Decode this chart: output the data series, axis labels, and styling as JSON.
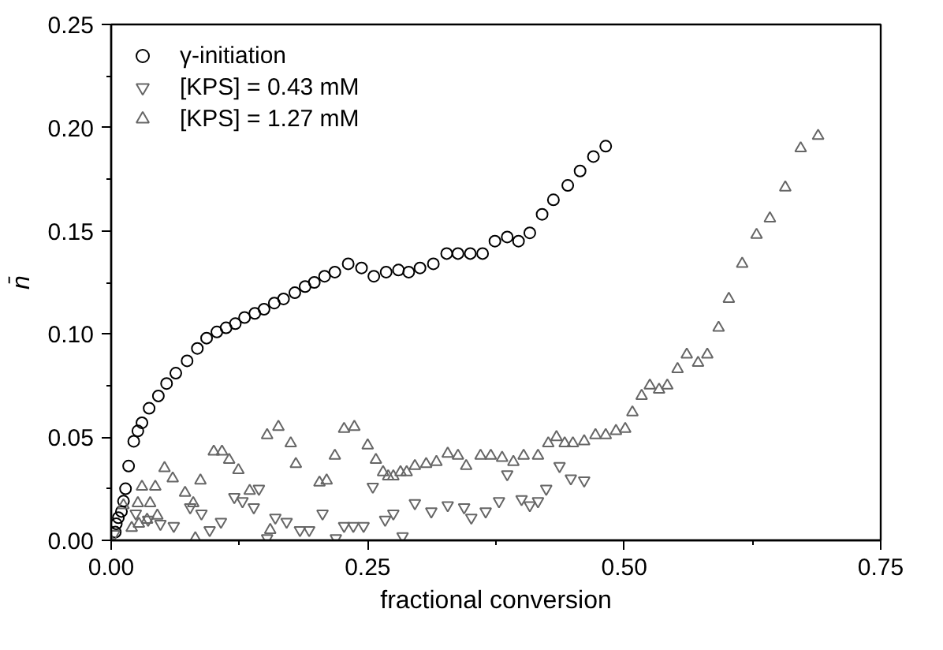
{
  "chart_data": {
    "type": "scatter",
    "xlabel": "fractional conversion",
    "ylabel": "n̄",
    "xlim": [
      0,
      0.75
    ],
    "ylim": [
      0,
      0.25
    ],
    "xticks": [
      {
        "value": 0,
        "label": "0.00"
      },
      {
        "value": 0.125,
        "label": null
      },
      {
        "value": 0.25,
        "label": "0.25"
      },
      {
        "value": 0.375,
        "label": null
      },
      {
        "value": 0.5,
        "label": "0.50"
      },
      {
        "value": 0.625,
        "label": null
      },
      {
        "value": 0.75,
        "label": "0.75"
      }
    ],
    "yticks": [
      {
        "value": 0,
        "label": "0.00"
      },
      {
        "value": 0.025,
        "label": null
      },
      {
        "value": 0.05,
        "label": "0.05"
      },
      {
        "value": 0.075,
        "label": null
      },
      {
        "value": 0.1,
        "label": "0.10"
      },
      {
        "value": 0.125,
        "label": null
      },
      {
        "value": 0.15,
        "label": "0.15"
      },
      {
        "value": 0.175,
        "label": null
      },
      {
        "value": 0.2,
        "label": "0.20"
      },
      {
        "value": 0.225,
        "label": null
      },
      {
        "value": 0.25,
        "label": "0.25"
      }
    ],
    "grid": false,
    "legend": "top left",
    "series": [
      {
        "name": "γ-initiation",
        "color": "#000000",
        "marker": "circle",
        "x": [
          0.004,
          0.005,
          0.007,
          0.01,
          0.012,
          0.014,
          0.017,
          0.022,
          0.026,
          0.03,
          0.037,
          0.046,
          0.054,
          0.063,
          0.074,
          0.084,
          0.093,
          0.103,
          0.112,
          0.121,
          0.13,
          0.14,
          0.149,
          0.159,
          0.168,
          0.179,
          0.189,
          0.198,
          0.208,
          0.218,
          0.231,
          0.244,
          0.256,
          0.268,
          0.28,
          0.29,
          0.301,
          0.314,
          0.327,
          0.338,
          0.35,
          0.362,
          0.374,
          0.386,
          0.397,
          0.408,
          0.42,
          0.431,
          0.445,
          0.457,
          0.47,
          0.482
        ],
        "values": [
          0.004,
          0.008,
          0.011,
          0.014,
          0.019,
          0.025,
          0.036,
          0.048,
          0.053,
          0.057,
          0.064,
          0.07,
          0.076,
          0.081,
          0.087,
          0.093,
          0.098,
          0.101,
          0.103,
          0.105,
          0.108,
          0.11,
          0.112,
          0.115,
          0.117,
          0.12,
          0.123,
          0.125,
          0.128,
          0.13,
          0.134,
          0.132,
          0.128,
          0.13,
          0.131,
          0.13,
          0.132,
          0.134,
          0.139,
          0.139,
          0.139,
          0.139,
          0.145,
          0.147,
          0.145,
          0.149,
          0.158,
          0.165,
          0.172,
          0.179,
          0.186,
          0.191
        ]
      },
      {
        "name": "[KPS] = 0.43 mM",
        "color": "#666666",
        "x": [
          0.003,
          0.024,
          0.036,
          0.048,
          0.061,
          0.077,
          0.088,
          0.096,
          0.107,
          0.12,
          0.128,
          0.139,
          0.144,
          0.152,
          0.16,
          0.171,
          0.184,
          0.193,
          0.206,
          0.219,
          0.227,
          0.236,
          0.246,
          0.255,
          0.267,
          0.275,
          0.284,
          0.296,
          0.312,
          0.328,
          0.344,
          0.351,
          0.365,
          0.378,
          0.386,
          0.4,
          0.408,
          0.416,
          0.424,
          0.437,
          0.448,
          0.461
        ],
        "values": [
          0.003,
          0.013,
          0.01,
          0.008,
          0.007,
          0.016,
          0.013,
          0.005,
          0.009,
          0.021,
          0.019,
          0.016,
          0.025,
          0.001,
          0.011,
          0.009,
          0.005,
          0.005,
          0.013,
          0.001,
          0.007,
          0.007,
          0.007,
          0.026,
          0.01,
          0.013,
          0.002,
          0.018,
          0.014,
          0.017,
          0.016,
          0.011,
          0.014,
          0.019,
          0.032,
          0.02,
          0.017,
          0.019,
          0.025,
          0.036,
          0.03,
          0.029
        ]
      },
      {
        "name": "[KPS] = 1.27 mM",
        "color": "#666666",
        "marker": "triangle",
        "x": [
          0.012,
          0.02,
          0.026,
          0.027,
          0.03,
          0.035,
          0.038,
          0.043,
          0.045,
          0.052,
          0.06,
          0.072,
          0.08,
          0.082,
          0.087,
          0.1,
          0.108,
          0.115,
          0.124,
          0.135,
          0.152,
          0.155,
          0.163,
          0.175,
          0.18,
          0.203,
          0.21,
          0.218,
          0.227,
          0.237,
          0.25,
          0.258,
          0.265,
          0.27,
          0.275,
          0.282,
          0.288,
          0.296,
          0.307,
          0.317,
          0.328,
          0.338,
          0.346,
          0.36,
          0.37,
          0.381,
          0.392,
          0.402,
          0.416,
          0.426,
          0.434,
          0.442,
          0.45,
          0.461,
          0.472,
          0.482,
          0.492,
          0.501,
          0.508,
          0.517,
          0.525,
          0.534,
          0.542,
          0.552,
          0.561,
          0.572,
          0.581,
          0.592,
          0.602,
          0.615,
          0.629,
          0.642,
          0.657,
          0.672,
          0.689
        ],
        "values": [
          0.017,
          0.006,
          0.018,
          0.008,
          0.026,
          0.01,
          0.018,
          0.026,
          0.012,
          0.035,
          0.03,
          0.023,
          0.018,
          0.001,
          0.029,
          0.043,
          0.043,
          0.039,
          0.034,
          0.024,
          0.051,
          0.005,
          0.055,
          0.047,
          0.037,
          0.028,
          0.029,
          0.041,
          0.054,
          0.055,
          0.046,
          0.039,
          0.033,
          0.031,
          0.031,
          0.033,
          0.033,
          0.036,
          0.037,
          0.038,
          0.042,
          0.041,
          0.036,
          0.041,
          0.041,
          0.04,
          0.038,
          0.041,
          0.041,
          0.047,
          0.05,
          0.047,
          0.047,
          0.048,
          0.051,
          0.051,
          0.053,
          0.054,
          0.062,
          0.07,
          0.075,
          0.073,
          0.075,
          0.083,
          0.09,
          0.086,
          0.09,
          0.103,
          0.117,
          0.134,
          0.148,
          0.156,
          0.171,
          0.19,
          0.196
        ]
      }
    ]
  }
}
